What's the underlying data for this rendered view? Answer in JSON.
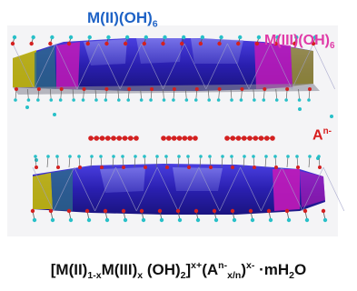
{
  "labels": {
    "divalent": {
      "base": "M(II)(OH)",
      "sub": "6"
    },
    "trivalent": {
      "base": "M(III)(OH)",
      "sub": "6"
    },
    "anion": {
      "base": "A",
      "sup": "n-"
    }
  },
  "formula": {
    "p1": "[M(II)",
    "s1": "1-x",
    "p2": "M(III)",
    "s2": "x",
    "p3": " (OH)",
    "s3": "2",
    "p4": "]",
    "sup1": "x+",
    "p5": "(A",
    "sup2": "n-",
    "s4": "x/n",
    "p6": ")",
    "sup3": "x-",
    "p7": " ·mH",
    "s5": "2",
    "p8": "O"
  },
  "colors": {
    "octahedron_m2": "#2b22b0",
    "octahedron_m3": "#c21ab8",
    "octahedron_edge": "#c8c400",
    "oxygen": "#d42020",
    "hydrogen": "#27c0c8",
    "divalent_label": "#1f63c6",
    "trivalent_label": "#e03aa7",
    "anion_label": "#d81e1e"
  }
}
